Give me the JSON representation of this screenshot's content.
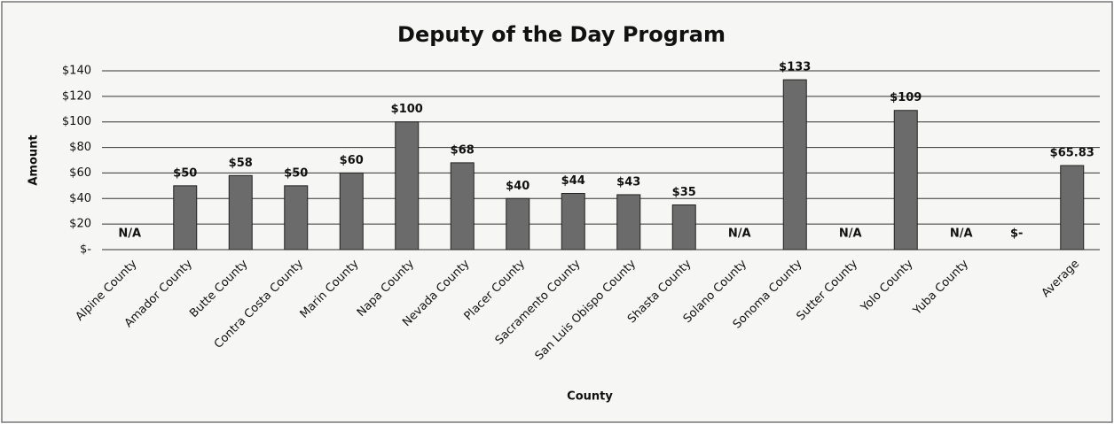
{
  "chart_data": {
    "type": "bar",
    "title": "Deputy of the Day Program",
    "x_label": "County",
    "y_label": "Amount",
    "categories": [
      "Alpine County",
      "Amador County",
      "Butte County",
      "Contra Costa County",
      "Marin County",
      "Napa County",
      "Nevada County",
      "Placer County",
      "Sacramento County",
      "San Luis Obispo County",
      "Shasta County",
      "Solano County",
      "Sonoma County",
      "Sutter County",
      "Yolo County",
      "Yuba County",
      null,
      "Average"
    ],
    "values": [
      null,
      50,
      58,
      50,
      60,
      100,
      68,
      40,
      44,
      43,
      35,
      null,
      133,
      null,
      109,
      null,
      0,
      65.83
    ],
    "value_labels": [
      "N/A",
      "$50",
      "$58",
      "$50",
      "$60",
      "$100",
      "$68",
      "$40",
      "$44",
      "$43",
      "$35",
      "N/A",
      "$133",
      "N/A",
      "$109",
      "N/A",
      "$-",
      "$65.83"
    ],
    "color": "#6b6b6b",
    "ylim": [
      0,
      140
    ],
    "yticks": [
      {
        "value": 0,
        "label": "$-"
      },
      {
        "value": 20,
        "label": "$20"
      },
      {
        "value": 40,
        "label": "$40"
      },
      {
        "value": 60,
        "label": "$60"
      },
      {
        "value": 80,
        "label": "$80"
      },
      {
        "value": 100,
        "label": "$100"
      },
      {
        "value": 120,
        "label": "$120"
      },
      {
        "value": 140,
        "label": "$140"
      }
    ],
    "grid": true
  }
}
